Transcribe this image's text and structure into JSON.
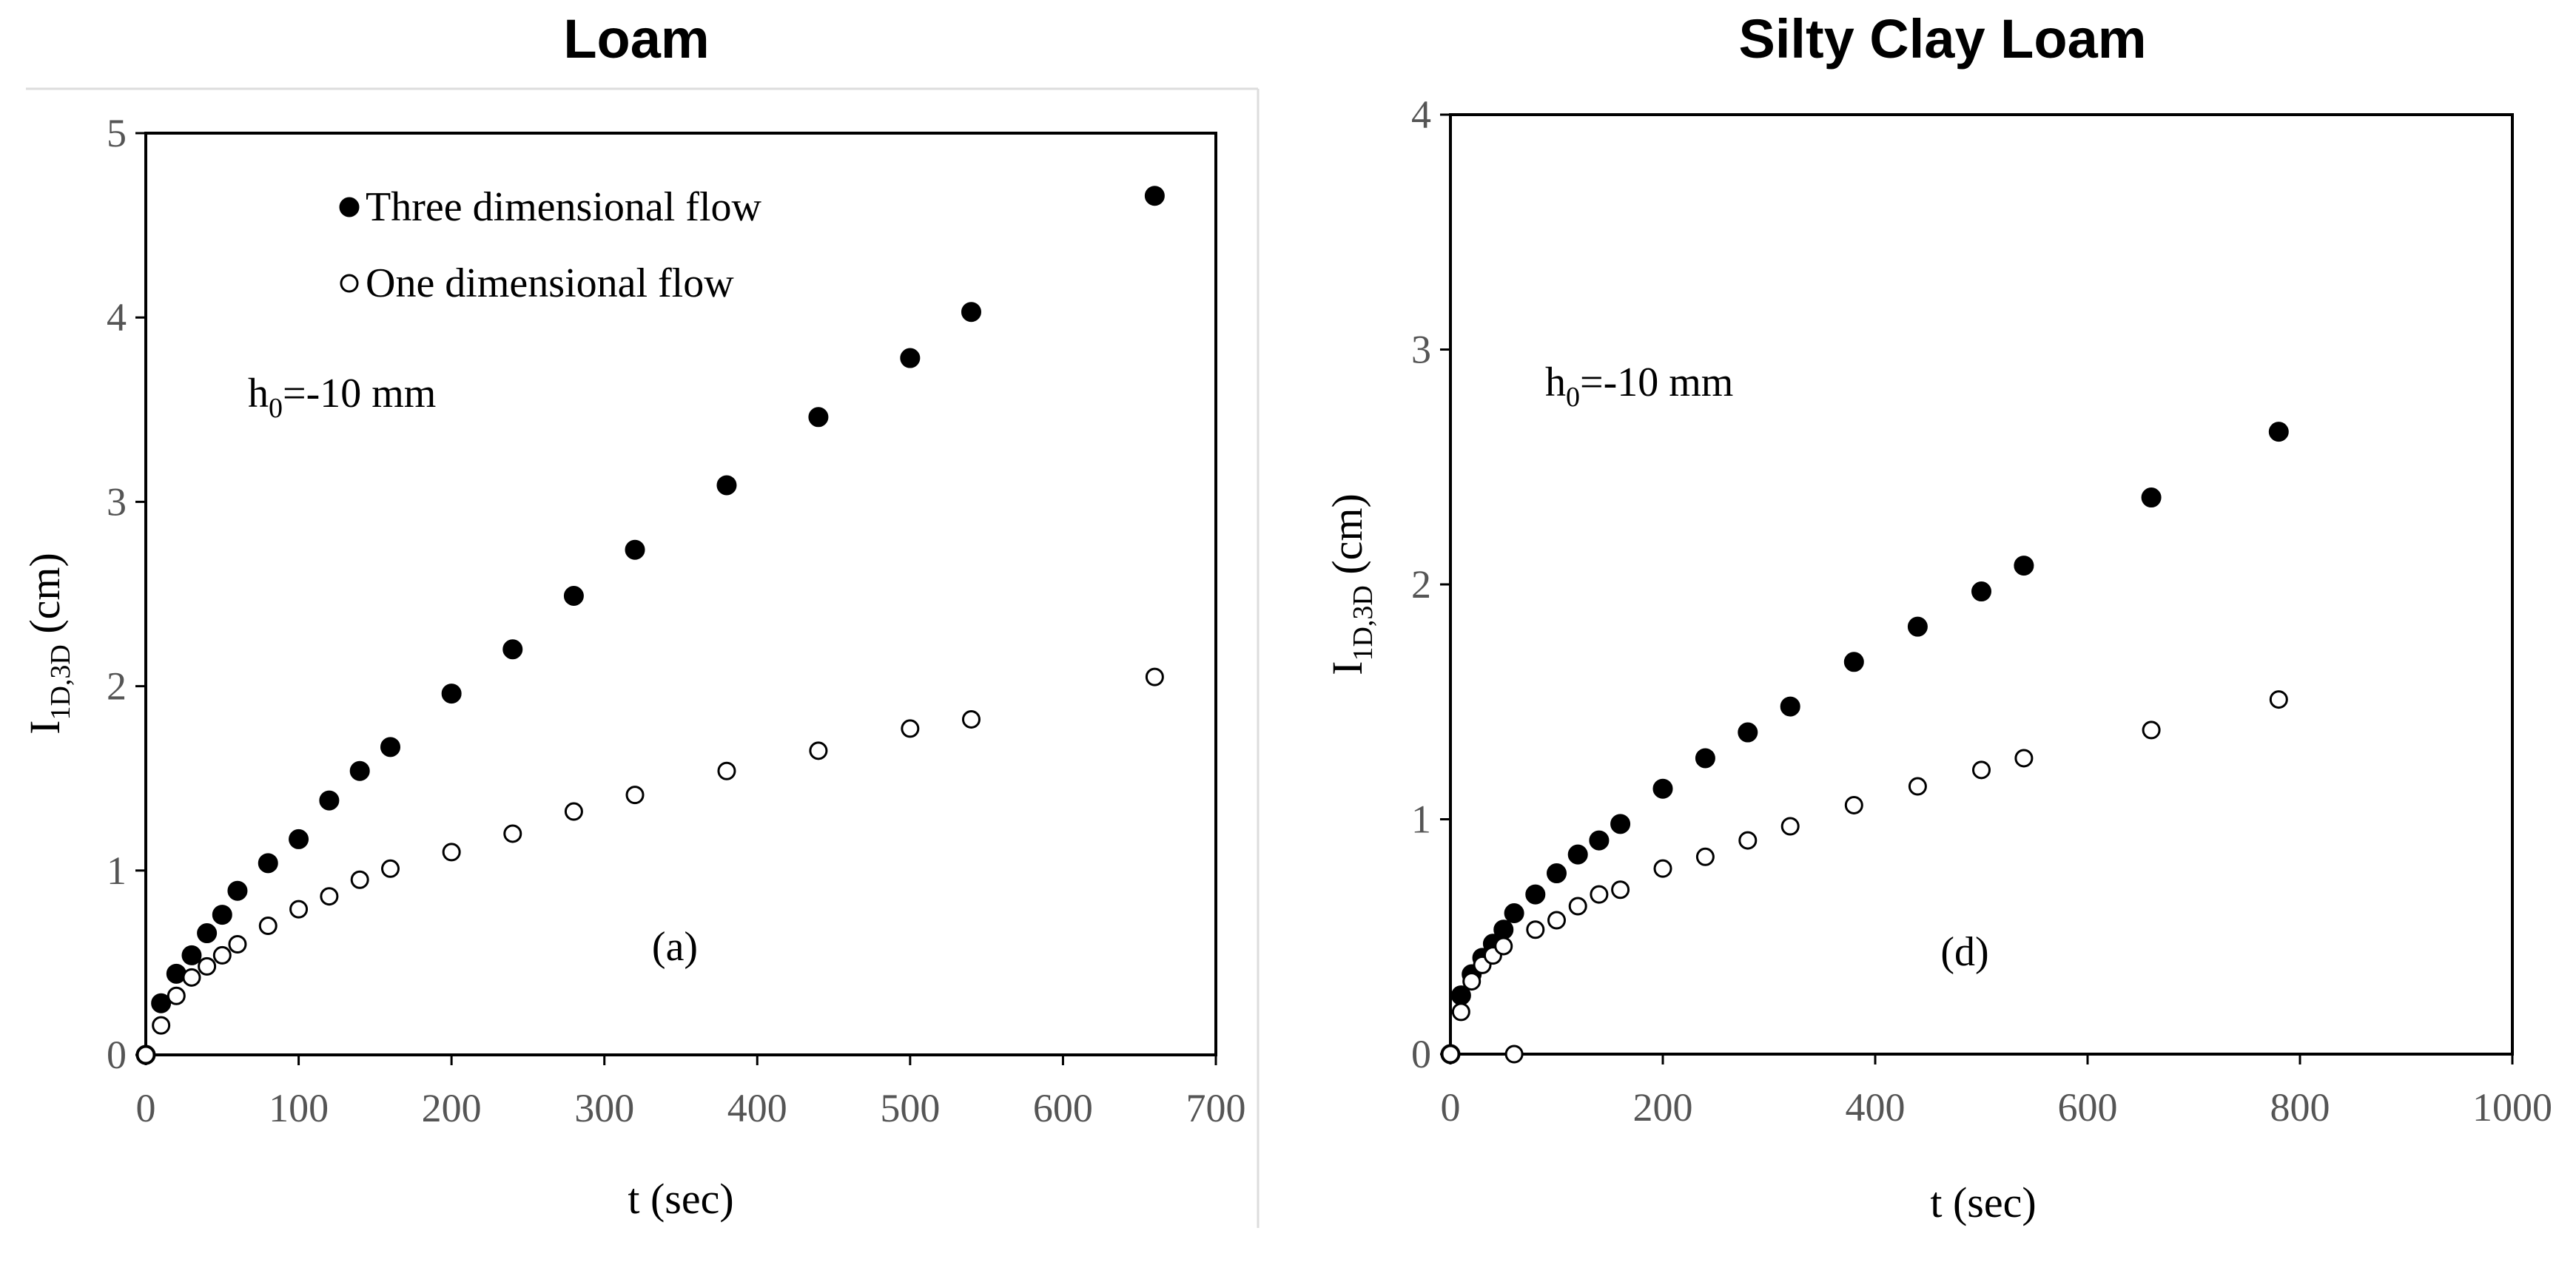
{
  "chart_data": [
    {
      "type": "scatter",
      "title": "Loam",
      "xlabel": "t (sec)",
      "ylabel": {
        "base": "I",
        "sub": "1D,3D",
        "suffix": " (cm)"
      },
      "xlim": [
        0,
        700
      ],
      "ylim": [
        0,
        5
      ],
      "xticks": [
        0,
        100,
        200,
        300,
        400,
        500,
        600,
        700
      ],
      "yticks": [
        0,
        1,
        2,
        3,
        4,
        5
      ],
      "legend": [
        "Three dimensional flow",
        "One dimensional flow"
      ],
      "annotations": {
        "h0_base": "h",
        "h0_sub": "0",
        "h0_rest": "=-10 mm",
        "panel": "(a)"
      },
      "series": [
        {
          "name": "Three dimensional flow",
          "marker": "filled",
          "x": [
            0,
            10,
            20,
            30,
            40,
            50,
            60,
            80,
            100,
            120,
            140,
            160,
            200,
            240,
            280,
            320,
            380,
            440,
            500,
            540,
            660
          ],
          "y": [
            0,
            0.28,
            0.44,
            0.54,
            0.66,
            0.76,
            0.89,
            1.04,
            1.17,
            1.38,
            1.54,
            1.67,
            1.96,
            2.2,
            2.49,
            2.74,
            3.09,
            3.46,
            3.78,
            4.03,
            4.66
          ]
        },
        {
          "name": "One dimensional flow",
          "marker": "open",
          "x": [
            0,
            10,
            20,
            30,
            40,
            50,
            60,
            80,
            100,
            120,
            140,
            160,
            200,
            240,
            280,
            320,
            380,
            440,
            500,
            540,
            660
          ],
          "y": [
            0,
            0.16,
            0.32,
            0.42,
            0.48,
            0.54,
            0.6,
            0.7,
            0.79,
            0.86,
            0.95,
            1.01,
            1.1,
            1.2,
            1.32,
            1.41,
            1.54,
            1.65,
            1.77,
            1.82,
            2.05
          ]
        }
      ]
    },
    {
      "type": "scatter",
      "title": "Silty Clay Loam",
      "xlabel": "t (sec)",
      "ylabel": {
        "base": "I",
        "sub": "1D,3D",
        "suffix": " (cm)"
      },
      "xlim": [
        0,
        1000
      ],
      "ylim": [
        0,
        4
      ],
      "xticks": [
        0,
        200,
        400,
        600,
        800,
        1000
      ],
      "yticks": [
        0,
        1,
        2,
        3,
        4
      ],
      "annotations": {
        "h0_base": "h",
        "h0_sub": "0",
        "h0_rest": "=-10 mm",
        "panel": "(d)"
      },
      "series": [
        {
          "name": "Three dimensional flow",
          "marker": "filled",
          "x": [
            0,
            10,
            20,
            30,
            40,
            50,
            60,
            80,
            100,
            120,
            140,
            160,
            200,
            240,
            280,
            320,
            380,
            440,
            500,
            540,
            660,
            780
          ],
          "y": [
            0,
            0.25,
            0.34,
            0.41,
            0.47,
            0.53,
            0.6,
            0.68,
            0.77,
            0.85,
            0.91,
            0.98,
            1.13,
            1.26,
            1.37,
            1.48,
            1.67,
            1.82,
            1.97,
            2.08,
            2.37,
            2.65
          ]
        },
        {
          "name": "One dimensional flow",
          "marker": "open",
          "x": [
            0,
            10,
            20,
            30,
            40,
            50,
            60,
            80,
            100,
            120,
            140,
            160,
            200,
            240,
            280,
            320,
            380,
            440,
            500,
            540,
            660,
            780
          ],
          "y": [
            0,
            0.18,
            0.31,
            0.38,
            0.42,
            0.46,
            0,
            0.53,
            0.57,
            0.63,
            0.68,
            0.7,
            0.79,
            0.84,
            0.91,
            0.97,
            1.06,
            1.14,
            1.21,
            1.26,
            1.38,
            1.51
          ]
        }
      ]
    }
  ]
}
